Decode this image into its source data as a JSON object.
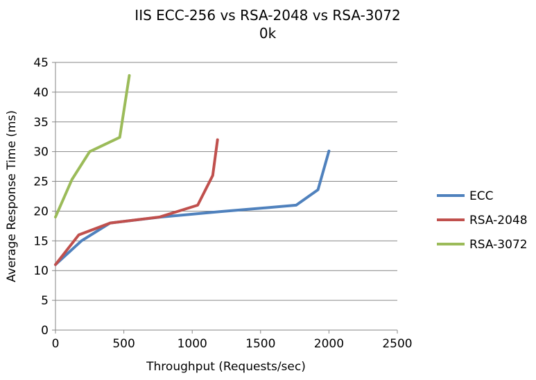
{
  "chart_data": {
    "type": "line",
    "title": "IIS ECC-256 vs RSA-2048 vs RSA-3072",
    "subtitle": "0k",
    "xlabel": "Throughput (Requests/sec)",
    "ylabel": "Average Response Time (ms)",
    "xlim": [
      0,
      2500
    ],
    "ylim": [
      0,
      45
    ],
    "xticks": [
      0,
      500,
      1000,
      1500,
      2000,
      2500
    ],
    "yticks": [
      0,
      5,
      10,
      15,
      20,
      25,
      30,
      35,
      40,
      45
    ],
    "grid": "horizontal",
    "legend_position": "right",
    "series": [
      {
        "name": "ECC",
        "color": "#4f81bd",
        "points": [
          [
            0,
            11
          ],
          [
            190,
            15
          ],
          [
            400,
            18
          ],
          [
            770,
            19
          ],
          [
            1200,
            19.9
          ],
          [
            1760,
            21
          ],
          [
            1920,
            23.6
          ],
          [
            2000,
            30.1
          ]
        ]
      },
      {
        "name": "RSA-2048",
        "color": "#c0504d",
        "points": [
          [
            0,
            11
          ],
          [
            170,
            16
          ],
          [
            400,
            18
          ],
          [
            760,
            19
          ],
          [
            1040,
            21
          ],
          [
            1150,
            26
          ],
          [
            1185,
            32
          ]
        ]
      },
      {
        "name": "RSA-3072",
        "color": "#9bbb59",
        "points": [
          [
            0,
            19
          ],
          [
            120,
            25.3
          ],
          [
            250,
            30
          ],
          [
            470,
            32.4
          ],
          [
            540,
            42.8
          ]
        ]
      }
    ]
  }
}
